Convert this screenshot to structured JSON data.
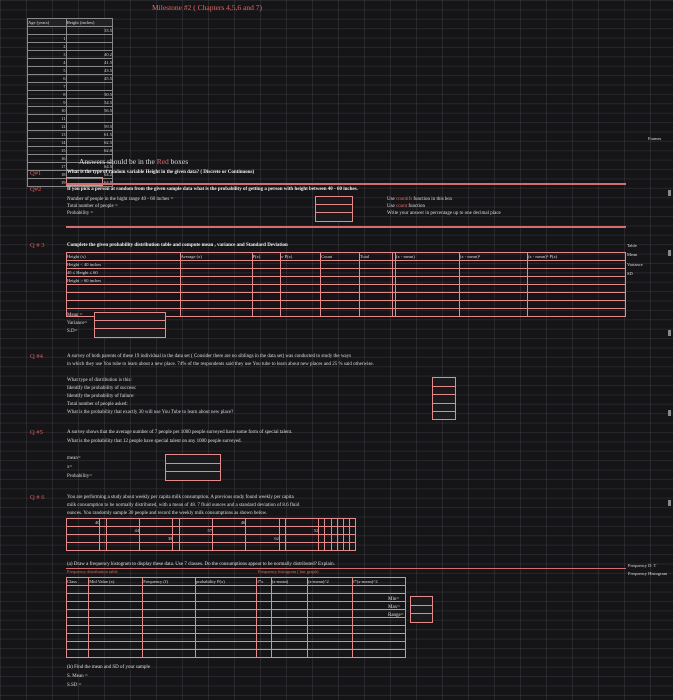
{
  "title": "Milestone #2 ( Chapters 4,5,6 and 7)",
  "data_table": {
    "headers": [
      "Age (years)",
      "Height (inches)"
    ],
    "rows": [
      [
        "",
        "33.5"
      ],
      [
        "1",
        ""
      ],
      [
        "2",
        ""
      ],
      [
        "3",
        "40.2"
      ],
      [
        "4",
        "41.5"
      ],
      [
        "5",
        "43.5"
      ],
      [
        "6",
        "45.5"
      ],
      [
        "7",
        ""
      ],
      [
        "8",
        "50.5"
      ],
      [
        "9",
        "54.5"
      ],
      [
        "10",
        "56.5"
      ],
      [
        "11",
        ""
      ],
      [
        "12",
        "59.5"
      ],
      [
        "13",
        "61.5"
      ],
      [
        "14",
        "62.5"
      ],
      [
        "15",
        "62.0"
      ],
      [
        "16",
        ""
      ],
      [
        "17",
        "64.5"
      ],
      [
        "18",
        "64.2"
      ],
      [
        "19",
        "64.0"
      ]
    ]
  },
  "answers_note": {
    "prefix": "Answers should be in the ",
    "red": "Red",
    "suffix": " boxes"
  },
  "q1": {
    "label": "Q#1",
    "text": "What is the type of random variable Height in the given data? ( Discrete or Continuous)"
  },
  "q2": {
    "label": "Q#2",
    "text": "If you pick a person at random from the given sample data what is the probability of getting a person with height between 40 - 60 inches.",
    "lines": [
      "Number of people in the hight range 40 - 60 inches =",
      "Total number of people =",
      "Probability ="
    ],
    "hints": [
      {
        "pre": "Use ",
        "red": "countifs",
        "post": " function in this box"
      },
      {
        "pre": "Use ",
        "red": "count",
        "post": " function"
      },
      {
        "pre": "Write your answer in percentage up to one decimal place",
        "red": "",
        "post": ""
      }
    ]
  },
  "q3": {
    "label": "Q # 3",
    "text": "Complete the given probability distribution table and compute mean , variance and Standard Deviation",
    "headers": [
      "Height (x)",
      "Average (x)",
      "P(x)",
      "x·P(x)",
      "Count",
      "Total",
      "",
      "(x - mean)",
      "(x - mean)²",
      "(x - mean)²·P(x)"
    ],
    "rows": [
      "Height < 40 inches",
      "40 ≤ Height ≤ 60",
      "Height > 60 inches",
      ""
    ],
    "stats": [
      "Mean =",
      "Variance=",
      "S.D="
    ],
    "side": [
      "Table",
      "Mean",
      "Variance",
      "SD"
    ]
  },
  "q4": {
    "label": "Q #4",
    "text1": "A survey of both parents of these 19 individual in the data set ( Consider there are no siblings in the data set) was conducted to study the ways",
    "text2": "in which they use You tube to learn about a new place. 74% of the respondents said they use You tube to learn about new places and 25 % said otherwise.",
    "lines": [
      "What type of distribution is this:",
      "Identify the probability of success:",
      "Identify the probability of failure:",
      "Total number of people asked:",
      "What is the probability that exactly 30 will use You Tube to learn about new place?"
    ]
  },
  "q5": {
    "label": "Q #5",
    "text1": "A survey shows that the average number of 7 people per 1000 people surveyed have some form of special talent.",
    "text2": "What is the probability that 12 people have special talent on any 1000 people surveyed.",
    "lines": [
      "mean=",
      "x=",
      "Probability="
    ]
  },
  "q6": {
    "label": "Q # 6",
    "text1": "You are performing a study about weekly per capita milk consumption. A previous study found weekly per capita",
    "text2": "milk consumption to be normally distributed, with a mean of 48. 7 fluid ounces and a standard deviation of 8.6 fluid",
    "text3": "ounces. You randomly sample 30 people and record the weekly milk consumptions as shown below.",
    "values": [
      "40",
      "",
      "",
      "",
      "",
      "",
      "46",
      "",
      "",
      "",
      "",
      "",
      "",
      "",
      "",
      "",
      "",
      "",
      "44",
      "",
      "",
      "57",
      "",
      "",
      "",
      "52",
      "",
      "",
      "",
      "",
      "",
      "",
      "",
      "",
      "",
      "38",
      "",
      "",
      "",
      "62",
      "",
      "",
      "",
      "",
      "",
      "",
      "",
      "",
      "",
      "",
      "",
      "",
      "",
      "",
      "",
      "",
      "",
      "",
      "",
      "",
      "",
      "",
      "",
      ""
    ],
    "part_a": "(a) Draw a frequency histogram to display these data. Use 7 classes. Do the consumptions appear to be normally distributed? Explain.",
    "freq_table_label": "Frequency distribution table",
    "freq_hist_label": "Frequency histogram ( bar graph)",
    "freq_headers": [
      "Class",
      "Mid Value (x)",
      "Frequency (f)",
      "probability P(x)",
      "f*x",
      "(x-mean)",
      "(x-mean)^2",
      "f*(x-mean)^2"
    ],
    "minmax": [
      "Min=",
      "Max=",
      "Range="
    ],
    "part_b": "(b) Find the mean and SD of your sample",
    "stats": [
      "S. Mean =",
      "S.SD ="
    ],
    "side": [
      "Frequency D. T",
      "Frequency Histogram"
    ]
  },
  "right_edge": {
    "top": "Frames"
  }
}
